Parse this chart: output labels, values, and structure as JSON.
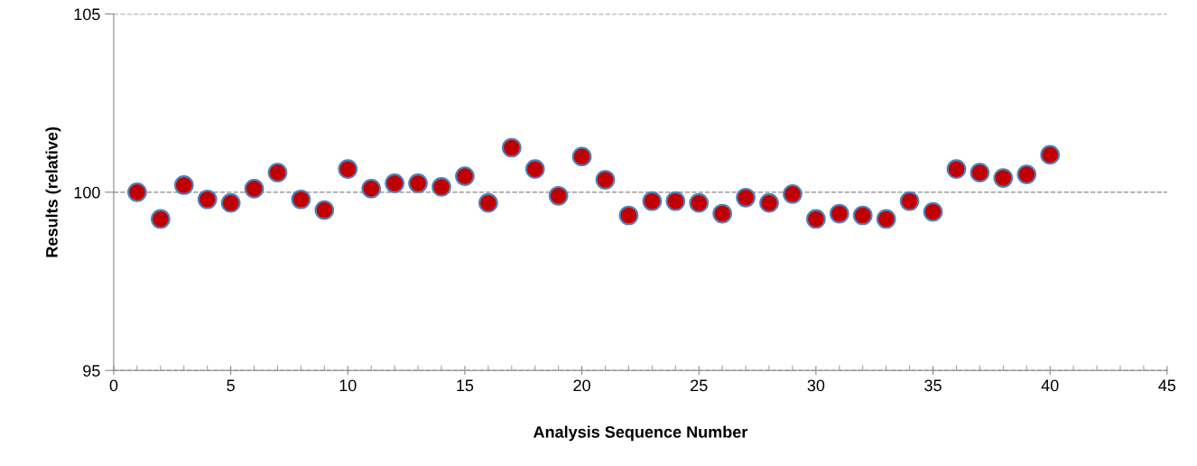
{
  "chart_data": {
    "type": "scatter",
    "xlabel": "Analysis Sequence Number",
    "ylabel": "Results (relative)",
    "x": [
      1,
      2,
      3,
      4,
      5,
      6,
      7,
      8,
      9,
      10,
      11,
      12,
      13,
      14,
      15,
      16,
      17,
      18,
      19,
      20,
      21,
      22,
      23,
      24,
      25,
      26,
      27,
      28,
      29,
      30,
      31,
      32,
      33,
      34,
      35,
      36,
      37,
      38,
      39,
      40
    ],
    "series": [
      {
        "color": "#c00000",
        "values": [
          100.0,
          99.25,
          100.2,
          99.8,
          99.7,
          100.1,
          100.55,
          99.8,
          99.5,
          100.65,
          100.1,
          100.25,
          100.25,
          100.15,
          100.45,
          99.7,
          101.25,
          100.65,
          99.9,
          101.0,
          100.35,
          99.35,
          99.75,
          99.75,
          99.7,
          99.4,
          99.85,
          99.7,
          99.95,
          99.25,
          99.4,
          99.35,
          99.25,
          99.75,
          99.45,
          100.65,
          100.55,
          100.4,
          100.5,
          101.05
        ]
      }
    ],
    "xlim": [
      0,
      45
    ],
    "xticks": [
      0,
      5,
      10,
      15,
      20,
      25,
      30,
      35,
      40,
      45
    ],
    "ylim": [
      95,
      105
    ],
    "yticks": [
      95,
      100,
      105
    ],
    "grid": "y",
    "marker": "circle",
    "legend": false
  }
}
